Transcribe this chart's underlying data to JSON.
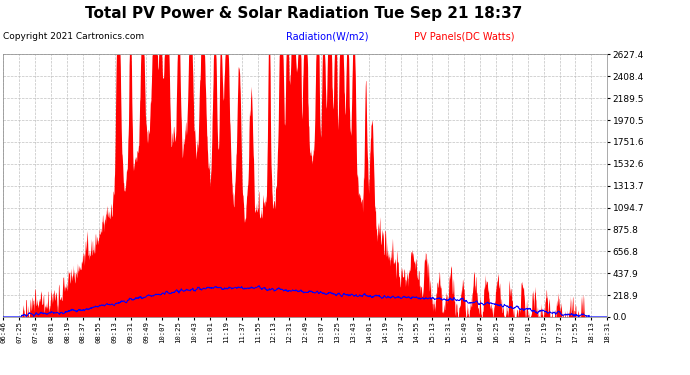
{
  "title": "Total PV Power & Solar Radiation Tue Sep 21 18:37",
  "copyright": "Copyright 2021 Cartronics.com",
  "legend_radiation": "Radiation(W/m2)",
  "legend_pv": "PV Panels(DC Watts)",
  "legend_radiation_color": "blue",
  "legend_pv_color": "red",
  "ymin": 0.0,
  "ymax": 2627.4,
  "yticks": [
    0.0,
    218.9,
    437.9,
    656.8,
    875.8,
    1094.7,
    1313.7,
    1532.6,
    1751.6,
    1970.5,
    2189.5,
    2408.4,
    2627.4
  ],
  "background_color": "#ffffff",
  "plot_bg_color": "#ffffff",
  "grid_color": "#bbbbbb",
  "title_fontsize": 11,
  "copyright_fontsize": 6.5,
  "xtick_fontsize": 5.2,
  "ytick_fontsize": 6.5,
  "xtick_labels": [
    "06:46",
    "07:25",
    "07:43",
    "08:01",
    "08:19",
    "08:37",
    "08:55",
    "09:13",
    "09:31",
    "09:49",
    "10:07",
    "10:25",
    "10:43",
    "11:01",
    "11:19",
    "11:37",
    "11:55",
    "12:13",
    "12:31",
    "12:49",
    "13:07",
    "13:25",
    "13:43",
    "14:01",
    "14:19",
    "14:37",
    "14:55",
    "15:13",
    "15:31",
    "15:49",
    "16:07",
    "16:25",
    "16:43",
    "17:01",
    "17:19",
    "17:37",
    "17:55",
    "18:13",
    "18:31"
  ]
}
